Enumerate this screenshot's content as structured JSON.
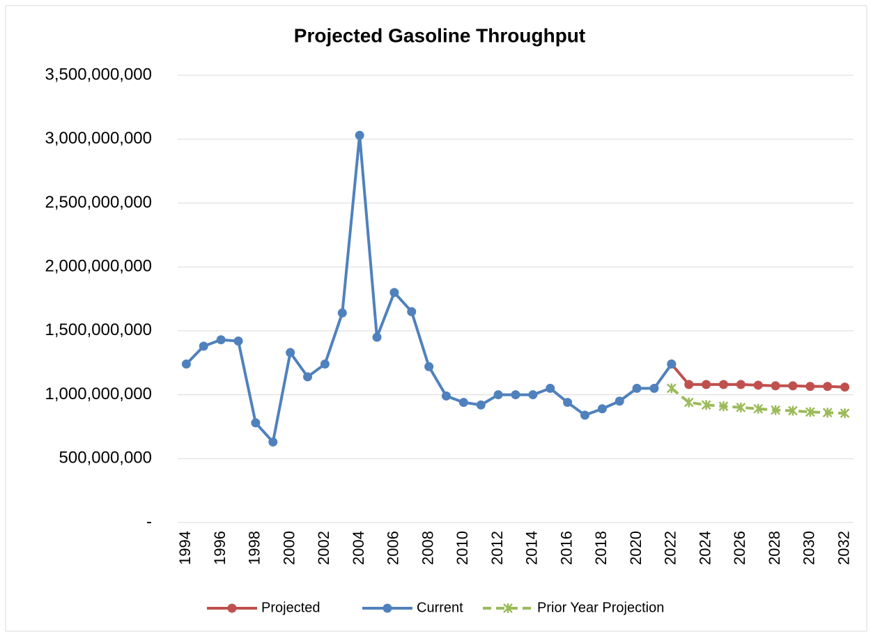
{
  "chart_data": {
    "type": "line",
    "title": "Projected Gasoline Throughput",
    "categories": [
      "1994",
      null,
      "1996",
      null,
      "1998",
      null,
      "2000",
      null,
      "2002",
      null,
      "2004",
      null,
      "2006",
      null,
      "2008",
      null,
      "2010",
      null,
      "2012",
      null,
      "2014",
      null,
      "2016",
      null,
      "2018",
      null,
      "2020",
      null,
      "2022",
      null,
      "2024",
      null,
      "2026",
      null,
      "2028",
      null,
      "2030",
      null,
      "2032"
    ],
    "ylim": [
      0,
      3500000000
    ],
    "yticks": [
      {
        "value": 0,
        "label": "-"
      },
      {
        "value": 500000000,
        "label": "500,000,000"
      },
      {
        "value": 1000000000,
        "label": "1,000,000,000"
      },
      {
        "value": 1500000000,
        "label": "1,500,000,000"
      },
      {
        "value": 2000000000,
        "label": "2,000,000,000"
      },
      {
        "value": 2500000000,
        "label": "2,500,000,000"
      },
      {
        "value": 3000000000,
        "label": "3,000,000,000"
      },
      {
        "value": 3500000000,
        "label": "3,500,000,000"
      }
    ],
    "grid": true,
    "legend": "bottom",
    "series": [
      {
        "name": "Projected",
        "color": "#c0504d",
        "marker": "circle",
        "dashed": false,
        "values": [
          null,
          null,
          null,
          null,
          null,
          null,
          null,
          null,
          null,
          null,
          null,
          null,
          null,
          null,
          null,
          null,
          null,
          null,
          null,
          null,
          null,
          null,
          null,
          null,
          null,
          null,
          null,
          null,
          1240000000,
          1080000000,
          1080000000,
          1080000000,
          1080000000,
          1075000000,
          1070000000,
          1070000000,
          1065000000,
          1065000000,
          1060000000
        ]
      },
      {
        "name": "Current",
        "color": "#4f81bd",
        "marker": "circle",
        "dashed": false,
        "values": [
          1240000000,
          1380000000,
          1430000000,
          1420000000,
          780000000,
          630000000,
          1330000000,
          1140000000,
          1240000000,
          1640000000,
          3030000000,
          1450000000,
          1800000000,
          1650000000,
          1220000000,
          990000000,
          940000000,
          920000000,
          1000000000,
          1000000000,
          1000000000,
          1050000000,
          940000000,
          840000000,
          890000000,
          950000000,
          1050000000,
          1050000000,
          1240000000,
          null,
          null,
          null,
          null,
          null,
          null,
          null,
          null,
          null,
          null
        ]
      },
      {
        "name": "Prior Year Projection",
        "color": "#9bbb59",
        "marker": "star",
        "dashed": true,
        "values": [
          null,
          null,
          null,
          null,
          null,
          null,
          null,
          null,
          null,
          null,
          null,
          null,
          null,
          null,
          null,
          null,
          null,
          null,
          null,
          null,
          null,
          null,
          null,
          null,
          null,
          null,
          null,
          null,
          1050000000,
          940000000,
          920000000,
          910000000,
          900000000,
          890000000,
          880000000,
          875000000,
          865000000,
          860000000,
          855000000
        ]
      }
    ]
  }
}
